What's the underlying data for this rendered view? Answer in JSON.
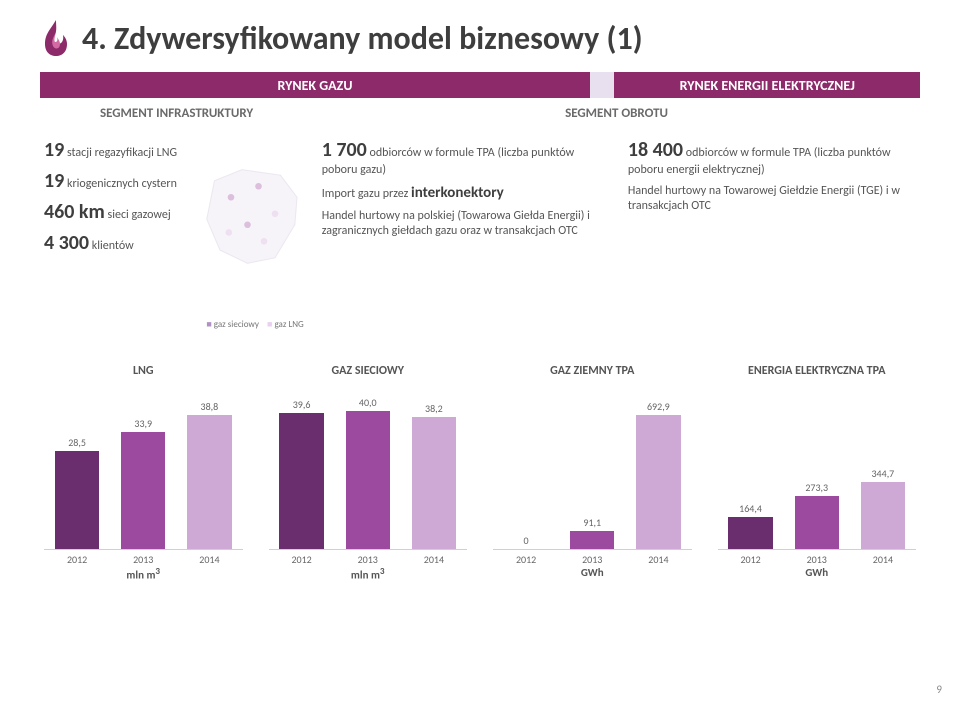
{
  "page": {
    "title": "4. Zdywersyfikowany model biznesowy (1)",
    "number": "9"
  },
  "ribbon": {
    "left": {
      "label": "RYNEK GAZU",
      "bg": "#8c2a6a"
    },
    "right": {
      "label": "RYNEK ENERGII ELEKTRYCZNEJ",
      "bg": "#8c2a6a"
    },
    "gap_bg": "#e9e0ef"
  },
  "segments": {
    "left": "SEGMENT INFRASTRUKTURY",
    "right": "SEGMENT OBROTU"
  },
  "col1": {
    "l1_num": "19",
    "l1_txt": "stacji regazyfikacji LNG",
    "l2_num": "19",
    "l2_txt": "kriogenicznych cystern",
    "l3_num": "460 km",
    "l3_txt": "sieci gazowej",
    "l4_num": "4 300",
    "l4_txt": "klientów",
    "legend_a": "gaz sieciowy",
    "legend_b": "gaz LNG"
  },
  "col2": {
    "p1_num": "1 700",
    "p1_txt": "odbiorców w formule TPA (liczba punktów poboru gazu)",
    "p2_a": "Import gazu przez ",
    "p2_b": "interkonektory",
    "p3": "Handel hurtowy na polskiej (Towarowa Giełda Energii) i zagranicznych giełdach gazu oraz w transakcjach OTC"
  },
  "col3": {
    "p1_num": "18 400",
    "p1_txt": "odbiorców w formule TPA (liczba punktów poboru energii elektrycznej)",
    "p2": "Handel hurtowy na Towarowej Giełdzie Energii (TGE) i w transakcjach OTC"
  },
  "charts": {
    "colors": [
      "#6a2e6e",
      "#9b4a9f",
      "#cfa9d6"
    ],
    "grid_color": "#d0d0d0",
    "value_fontsize": 10,
    "title_fontsize": 12,
    "bar_width_pct": 70,
    "lng": {
      "title": "LNG",
      "categories": [
        "2012",
        "2013",
        "2014"
      ],
      "values": [
        28.5,
        33.9,
        38.8
      ],
      "labels": [
        "28,5",
        "33,9",
        "38,8"
      ],
      "ymax": 45,
      "unit": "mln m³"
    },
    "gaz": {
      "title": "GAZ SIECIOWY",
      "categories": [
        "2012",
        "2013",
        "2014"
      ],
      "values": [
        39.6,
        40.0,
        38.2
      ],
      "labels": [
        "39,6",
        "40,0",
        "38,2"
      ],
      "ymax": 45,
      "unit": "mln m³"
    },
    "tpa": {
      "title": "GAZ ZIEMNY TPA",
      "categories": [
        "2012",
        "2013",
        "2014"
      ],
      "values": [
        0,
        91.1,
        692.9
      ],
      "labels": [
        "0",
        "91,1",
        "692,9"
      ],
      "ymax": 800,
      "unit": "GWh"
    },
    "ee": {
      "title": "ENERGIA ELEKTRYCZNA TPA",
      "categories": [
        "2012",
        "2013",
        "2014"
      ],
      "values": [
        164.4,
        273.3,
        344.7
      ],
      "labels": [
        "164,4",
        "273,3",
        "344,7"
      ],
      "ymax": 800,
      "unit": "GWh"
    }
  },
  "flame": {
    "outer": "#8c2a6a",
    "inner": "#d36aa3"
  }
}
